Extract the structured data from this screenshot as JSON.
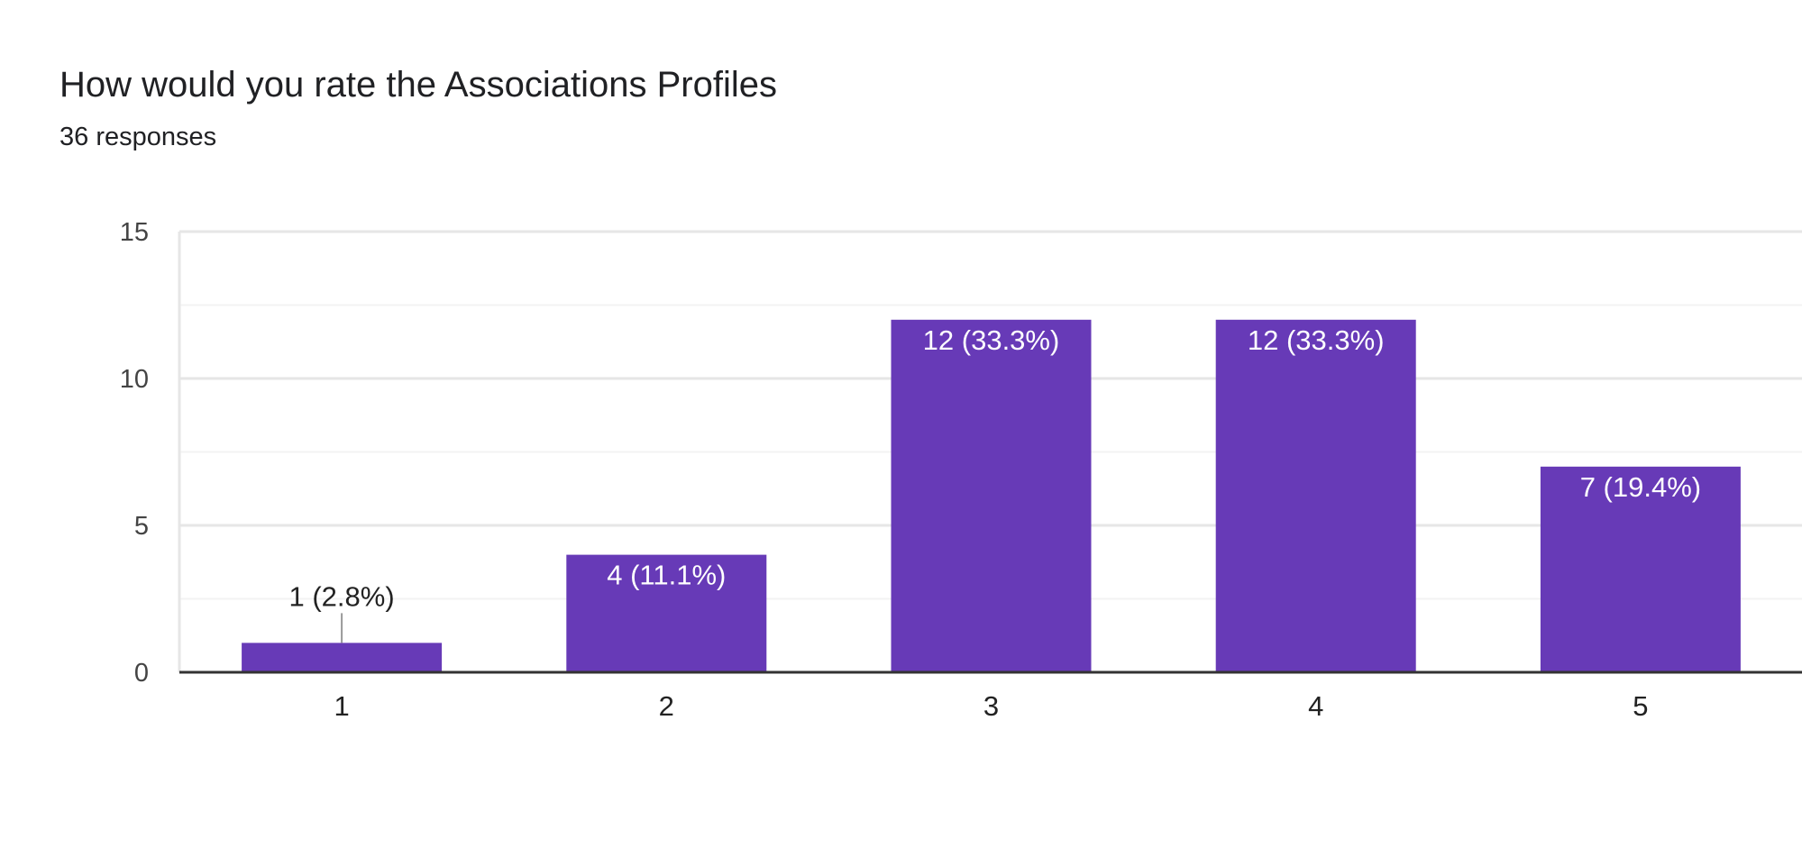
{
  "question": {
    "title": "How would you rate the Associations Profiles",
    "responses": "36 responses"
  },
  "colors": {
    "bar": "#673ab7",
    "grid_major": "#e6e6e6",
    "grid_minor": "#f3f3f3",
    "axis": "#333333",
    "leader": "#999999"
  },
  "chart_data": {
    "type": "bar",
    "categories": [
      "1",
      "2",
      "3",
      "4",
      "5"
    ],
    "values": [
      1,
      4,
      12,
      12,
      7
    ],
    "data_labels": [
      "1 (2.8%)",
      "4 (11.1%)",
      "12 (33.3%)",
      "12 (33.3%)",
      "7 (19.4%)"
    ],
    "ylim": [
      0,
      15
    ],
    "yticks": [
      0,
      5,
      10,
      15
    ],
    "minor_gridlines": [
      2.5,
      7.5,
      12.5
    ],
    "grid": true,
    "legend": "none"
  }
}
